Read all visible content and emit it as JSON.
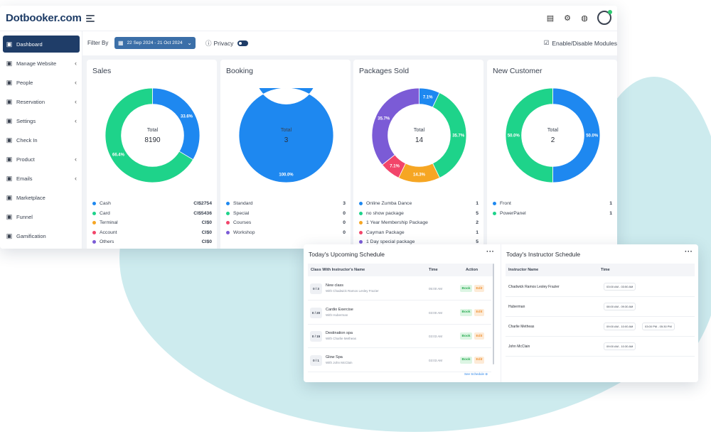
{
  "app": {
    "logo": "Dotbooker.com"
  },
  "sidebar": {
    "items": [
      {
        "label": "Dashboard",
        "icon": "dashboard-icon",
        "active": true,
        "chevron": false
      },
      {
        "label": "Manage Website",
        "icon": "website-icon",
        "chevron": true
      },
      {
        "label": "People",
        "icon": "people-icon",
        "chevron": true
      },
      {
        "label": "Reservation",
        "icon": "reservation-icon",
        "chevron": true
      },
      {
        "label": "Settings",
        "icon": "gear-icon",
        "chevron": true
      },
      {
        "label": "Check In",
        "icon": "checkin-icon",
        "chevron": false
      },
      {
        "label": "Product",
        "icon": "product-icon",
        "chevron": true
      },
      {
        "label": "Emails",
        "icon": "email-icon",
        "chevron": true
      },
      {
        "label": "Marketplace",
        "icon": "store-icon",
        "chevron": false
      },
      {
        "label": "Funnel",
        "icon": "funnel-icon",
        "chevron": false
      },
      {
        "label": "Gamification",
        "icon": "trophy-icon",
        "chevron": false
      }
    ]
  },
  "filter": {
    "label": "Filter By",
    "date_range": "22 Sep 2024 - 21 Oct 2024",
    "privacy_label": "Privacy",
    "modules_label": "Enable/Disable Modules"
  },
  "colors": {
    "blue": "#1e88f0",
    "green": "#1ed38a",
    "orange": "#f6a623",
    "red": "#f2456a",
    "purple": "#7b5bd6",
    "navy": "#1f3d68"
  },
  "cards": [
    {
      "title": "Sales",
      "total_label": "Total",
      "total": "8190",
      "slices": [
        {
          "value": 33.6,
          "label": "33.6%",
          "color": "#1e88f0"
        },
        {
          "value": 66.4,
          "label": "66.4%",
          "color": "#1ed38a"
        }
      ],
      "legend": [
        {
          "name": "Cash",
          "value": "CI$2754",
          "color": "#1e88f0"
        },
        {
          "name": "Card",
          "value": "CI$5436",
          "color": "#1ed38a"
        },
        {
          "name": "Terminal",
          "value": "CI$0",
          "color": "#f6a623"
        },
        {
          "name": "Account",
          "value": "CI$0",
          "color": "#f2456a"
        },
        {
          "name": "Others",
          "value": "CI$0",
          "color": "#7b5bd6"
        }
      ]
    },
    {
      "title": "Booking",
      "total_label": "Total",
      "total": "3",
      "slices": [
        {
          "value": 100,
          "label": "100.0%",
          "color": "#1e88f0"
        }
      ],
      "legend": [
        {
          "name": "Standard",
          "value": "3",
          "color": "#1e88f0"
        },
        {
          "name": "Special",
          "value": "0",
          "color": "#1ed38a"
        },
        {
          "name": "Courses",
          "value": "0",
          "color": "#f2456a"
        },
        {
          "name": "Workshop",
          "value": "0",
          "color": "#7b5bd6"
        }
      ]
    },
    {
      "title": "Packages Sold",
      "total_label": "Total",
      "total": "14",
      "slices": [
        {
          "value": 7.1,
          "label": "7.1%",
          "color": "#1e88f0"
        },
        {
          "value": 35.7,
          "label": "35.7%",
          "color": "#1ed38a"
        },
        {
          "value": 14.3,
          "label": "14.3%",
          "color": "#f6a623"
        },
        {
          "value": 7.1,
          "label": "7.1%",
          "color": "#f2456a"
        },
        {
          "value": 35.7,
          "label": "35.7%",
          "color": "#7b5bd6"
        }
      ],
      "legend": [
        {
          "name": "Online Zumba Dance",
          "value": "1",
          "color": "#1e88f0"
        },
        {
          "name": "no show package",
          "value": "5",
          "color": "#1ed38a"
        },
        {
          "name": "1 Year Membership Package",
          "value": "2",
          "color": "#f6a623"
        },
        {
          "name": "Cayman Package",
          "value": "1",
          "color": "#f2456a"
        },
        {
          "name": "1 Day special package",
          "value": "5",
          "color": "#7b5bd6"
        }
      ]
    },
    {
      "title": "New Customer",
      "total_label": "Total",
      "total": "2",
      "slices": [
        {
          "value": 50,
          "label": "50.0%",
          "color": "#1e88f0"
        },
        {
          "value": 50,
          "label": "50.0%",
          "color": "#1ed38a"
        }
      ],
      "legend": [
        {
          "name": "Front",
          "value": "1",
          "color": "#1e88f0"
        },
        {
          "name": "PowerPanel",
          "value": "1",
          "color": "#1ed38a"
        }
      ]
    }
  ],
  "upcoming": {
    "title": "Today's Upcoming Schedule",
    "col_class": "Class With Instructor's Name",
    "col_time": "Time",
    "col_action": "Action",
    "book_label": "Book",
    "edit_label": "Edit",
    "rows": [
      {
        "badge": "0 / 3",
        "name": "New class",
        "sub": "With Chadwick Ramos Lesley Frazier",
        "time": "05:00 AM"
      },
      {
        "badge": "0 / 20",
        "name": "Cardio Exercise",
        "sub": "With Huberman",
        "time": "03:00 AM"
      },
      {
        "badge": "0 / 15",
        "name": "Destination spa",
        "sub": "With Charlie Metheas",
        "time": "03:03 AM"
      },
      {
        "badge": "0 / 1",
        "name": "Glow Spa",
        "sub": "With John McClain",
        "time": "03:03 AM"
      }
    ],
    "see_label": "See Schedule"
  },
  "instructor": {
    "title": "Today's Instructor Schedule",
    "col_name": "Instructor Name",
    "col_time": "Time",
    "rows": [
      {
        "name": "Chadwick Ramos Lesley Frazier",
        "times": [
          "03:00 AM - 03:50 AM"
        ]
      },
      {
        "name": "Huberman",
        "times": [
          "08:00 AM - 09:30 AM"
        ]
      },
      {
        "name": "Charlie Metheas",
        "times": [
          "09:00 AM - 10:00 AM",
          "03:00 PM - 05:30 PM"
        ]
      },
      {
        "name": "John McClain",
        "times": [
          "09:00 AM - 10:30 AM"
        ]
      }
    ]
  }
}
